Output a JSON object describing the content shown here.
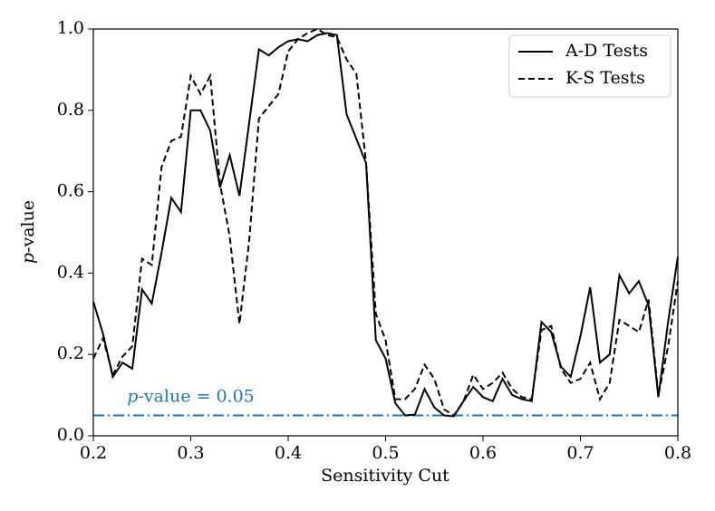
{
  "chart_data": {
    "type": "line",
    "xlabel": "Sensitivity Cut",
    "ylabel": "p-value",
    "x": [
      0.2,
      0.21,
      0.22,
      0.23,
      0.24,
      0.25,
      0.26,
      0.27,
      0.28,
      0.29,
      0.3,
      0.31,
      0.32,
      0.33,
      0.34,
      0.35,
      0.36,
      0.37,
      0.38,
      0.39,
      0.4,
      0.41,
      0.42,
      0.43,
      0.44,
      0.45,
      0.46,
      0.47,
      0.48,
      0.49,
      0.5,
      0.51,
      0.52,
      0.53,
      0.54,
      0.55,
      0.56,
      0.57,
      0.58,
      0.59,
      0.6,
      0.61,
      0.62,
      0.63,
      0.64,
      0.65,
      0.66,
      0.67,
      0.68,
      0.69,
      0.7,
      0.71,
      0.72,
      0.73,
      0.74,
      0.75,
      0.76,
      0.77,
      0.78,
      0.79,
      0.8
    ],
    "series": [
      {
        "name": "A-D Tests",
        "color": "#000000",
        "dash": "solid",
        "values": [
          0.33,
          0.25,
          0.145,
          0.18,
          0.165,
          0.36,
          0.325,
          0.45,
          0.585,
          0.55,
          0.8,
          0.8,
          0.75,
          0.61,
          0.69,
          0.59,
          0.77,
          0.95,
          0.935,
          0.955,
          0.97,
          0.975,
          0.97,
          0.985,
          0.99,
          0.985,
          0.79,
          0.73,
          0.67,
          0.235,
          0.19,
          0.08,
          0.05,
          0.052,
          0.115,
          0.07,
          0.05,
          0.048,
          0.085,
          0.12,
          0.095,
          0.085,
          0.14,
          0.1,
          0.09,
          0.085,
          0.28,
          0.255,
          0.17,
          0.145,
          0.245,
          0.365,
          0.18,
          0.2,
          0.395,
          0.35,
          0.38,
          0.32,
          0.095,
          0.28,
          0.44
        ]
      },
      {
        "name": "K-S Tests",
        "color": "#000000",
        "dash": "dashed",
        "values": [
          0.19,
          0.24,
          0.15,
          0.195,
          0.22,
          0.435,
          0.42,
          0.66,
          0.725,
          0.735,
          0.885,
          0.84,
          0.885,
          0.62,
          0.49,
          0.275,
          0.48,
          0.78,
          0.81,
          0.84,
          0.945,
          0.975,
          0.99,
          1.0,
          0.985,
          0.98,
          0.925,
          0.89,
          0.67,
          0.3,
          0.235,
          0.09,
          0.09,
          0.115,
          0.175,
          0.14,
          0.065,
          0.05,
          0.085,
          0.15,
          0.115,
          0.13,
          0.155,
          0.115,
          0.095,
          0.09,
          0.26,
          0.27,
          0.165,
          0.13,
          0.14,
          0.18,
          0.09,
          0.13,
          0.285,
          0.27,
          0.255,
          0.335,
          0.1,
          0.22,
          0.38
        ]
      }
    ],
    "hline": {
      "value": 0.05,
      "color": "#1f77b4",
      "label": "p-value = 0.05"
    },
    "xlim": [
      0.2,
      0.8
    ],
    "xticks": [
      0.2,
      0.3,
      0.4,
      0.5,
      0.6,
      0.7,
      0.8
    ],
    "ylim": [
      0.0,
      1.0
    ],
    "yticks": [
      {
        "value": 0.0,
        "label": "0.0"
      },
      0.2,
      0.4,
      0.6,
      0.8,
      {
        "value": 1.0,
        "label": "1.0"
      }
    ],
    "legend": "upper right",
    "grid": false
  }
}
